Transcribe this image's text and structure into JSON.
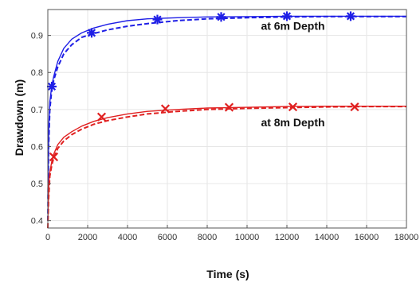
{
  "chart_data": {
    "type": "line",
    "xlabel": "Time (s)",
    "ylabel": "Drawdown (m)",
    "xlim": [
      0,
      18000
    ],
    "ylim": [
      0.38,
      0.97
    ],
    "xticks": [
      0,
      2000,
      4000,
      6000,
      8000,
      10000,
      12000,
      14000,
      16000,
      18000
    ],
    "yticks": [
      0.4,
      0.5,
      0.6,
      0.7,
      0.8,
      0.9
    ],
    "grid": true,
    "annotations": [
      {
        "text": "at 6m Depth",
        "x": 12300,
        "y": 0.915
      },
      {
        "text": "at 8m Depth",
        "x": 12300,
        "y": 0.655
      }
    ],
    "series": [
      {
        "color": "#1f1fe6",
        "style": "solid",
        "x": [
          0,
          50,
          100,
          200,
          300,
          500,
          800,
          1200,
          1700,
          2300,
          3000,
          4000,
          5000,
          6500,
          8000,
          10000,
          12000,
          14000,
          16000,
          18000
        ],
        "y": [
          0.46,
          0.66,
          0.72,
          0.765,
          0.79,
          0.83,
          0.865,
          0.89,
          0.907,
          0.92,
          0.93,
          0.94,
          0.945,
          0.948,
          0.95,
          0.951,
          0.952,
          0.952,
          0.952,
          0.952
        ]
      },
      {
        "color": "#1f1fe6",
        "style": "dashed",
        "x": [
          0,
          40,
          100,
          200,
          300,
          500,
          800,
          1200,
          1700,
          2300,
          3000,
          4000,
          5000,
          6500,
          8000,
          10000,
          12000,
          14000,
          16000,
          18000
        ],
        "y": [
          0.4,
          0.6,
          0.7,
          0.755,
          0.78,
          0.815,
          0.85,
          0.875,
          0.895,
          0.905,
          0.915,
          0.925,
          0.932,
          0.94,
          0.945,
          0.948,
          0.95,
          0.951,
          0.951,
          0.951
        ]
      },
      {
        "color": "#1f1fe6",
        "style": "markers",
        "marker": "asterisk",
        "x": [
          200,
          2200,
          5500,
          8700,
          12000,
          15200
        ],
        "y": [
          0.762,
          0.907,
          0.943,
          0.95,
          0.952,
          0.952
        ]
      },
      {
        "color": "#e02020",
        "style": "solid",
        "x": [
          0,
          50,
          100,
          200,
          300,
          500,
          800,
          1200,
          1700,
          2300,
          3000,
          4000,
          5000,
          6500,
          8000,
          10000,
          12000,
          14000,
          16000,
          18000
        ],
        "y": [
          0.4,
          0.5,
          0.53,
          0.56,
          0.58,
          0.605,
          0.625,
          0.64,
          0.655,
          0.668,
          0.678,
          0.688,
          0.695,
          0.7,
          0.704,
          0.706,
          0.708,
          0.709,
          0.709,
          0.709
        ]
      },
      {
        "color": "#e02020",
        "style": "dashed",
        "x": [
          0,
          40,
          100,
          200,
          300,
          500,
          800,
          1200,
          1700,
          2300,
          3000,
          4000,
          5000,
          6500,
          8000,
          10000,
          12000,
          14000,
          16000,
          18000
        ],
        "y": [
          0.38,
          0.46,
          0.52,
          0.55,
          0.57,
          0.595,
          0.615,
          0.632,
          0.647,
          0.66,
          0.67,
          0.68,
          0.688,
          0.695,
          0.7,
          0.703,
          0.705,
          0.707,
          0.708,
          0.708
        ]
      },
      {
        "color": "#e02020",
        "style": "markers",
        "marker": "x",
        "x": [
          300,
          2700,
          5900,
          9100,
          12300,
          15400
        ],
        "y": [
          0.572,
          0.68,
          0.702,
          0.706,
          0.707,
          0.707
        ]
      }
    ]
  }
}
